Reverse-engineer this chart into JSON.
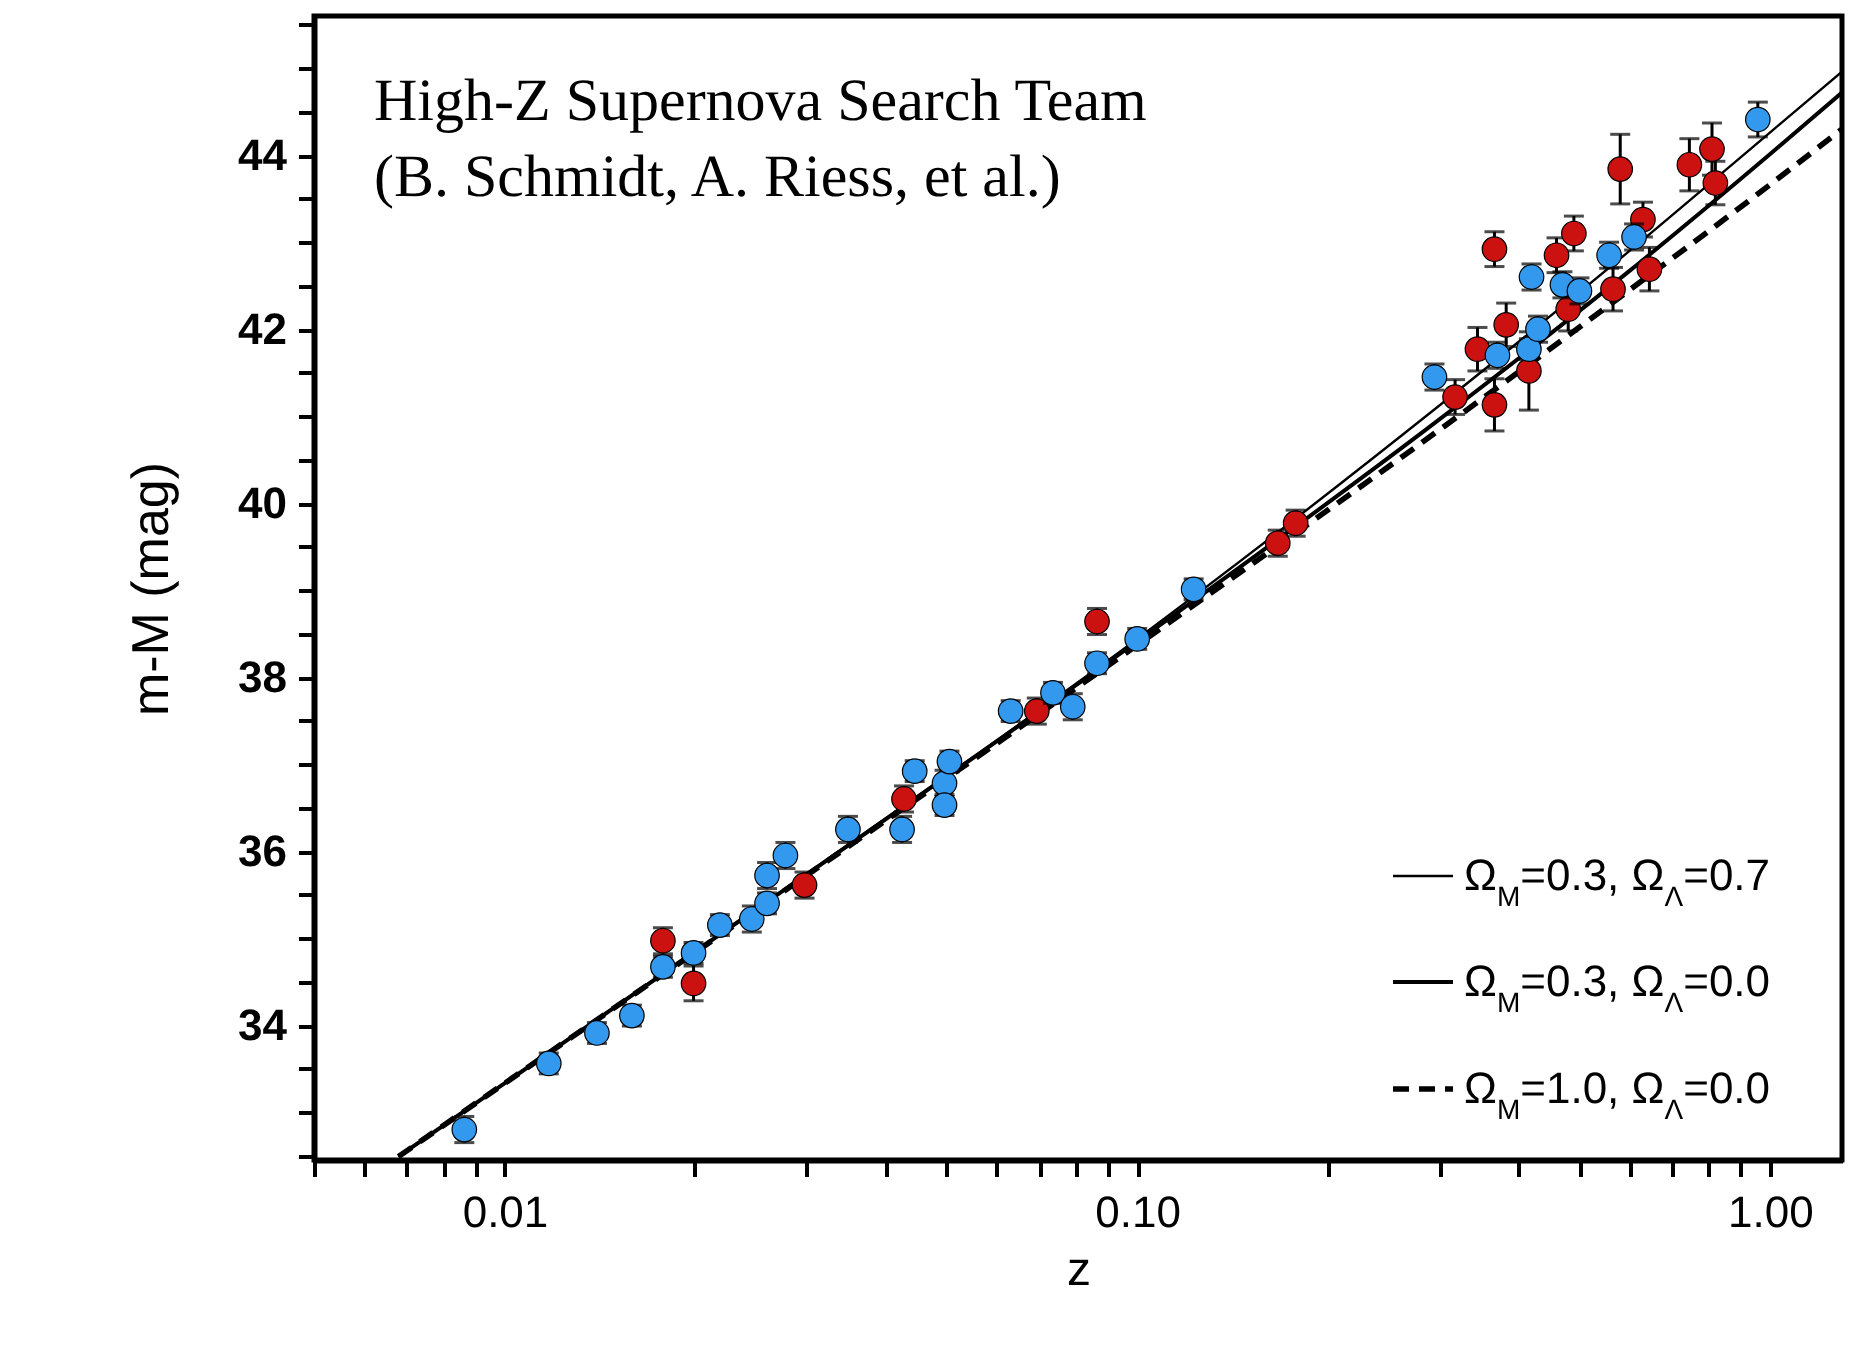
{
  "chart_data": {
    "type": "scatter",
    "xlabel": "z",
    "ylabel": "m-M (mag)",
    "log": "x",
    "grid": false,
    "legend": "bottom right",
    "marker": "circle",
    "annotations": [
      "High-Z Supernova Search Team",
      "(B. Schmidt, A. Riess, et al.)"
    ],
    "xlim": [
      0.005,
      1.3
    ],
    "ylim": [
      32.45,
      45.6
    ],
    "xticks": [
      {
        "value": 0.005,
        "label": null
      },
      {
        "value": 0.006,
        "label": null
      },
      {
        "value": 0.007,
        "label": null
      },
      {
        "value": 0.008,
        "label": null
      },
      {
        "value": 0.009,
        "label": null
      },
      {
        "value": 0.01,
        "label": "0.01"
      },
      {
        "value": 0.02,
        "label": null
      },
      {
        "value": 0.03,
        "label": null
      },
      {
        "value": 0.04,
        "label": null
      },
      {
        "value": 0.05,
        "label": null
      },
      {
        "value": 0.06,
        "label": null
      },
      {
        "value": 0.07,
        "label": null
      },
      {
        "value": 0.08,
        "label": null
      },
      {
        "value": 0.09,
        "label": null
      },
      {
        "value": 0.1,
        "label": "0.10"
      },
      {
        "value": 0.2,
        "label": null
      },
      {
        "value": 0.3,
        "label": null
      },
      {
        "value": 0.4,
        "label": null
      },
      {
        "value": 0.5,
        "label": null
      },
      {
        "value": 0.6,
        "label": null
      },
      {
        "value": 0.7,
        "label": null
      },
      {
        "value": 0.8,
        "label": null
      },
      {
        "value": 0.9,
        "label": null
      },
      {
        "value": 1,
        "label": "1.00"
      }
    ],
    "yticks": [
      {
        "value": 32.5,
        "label": null
      },
      {
        "value": 33,
        "label": null
      },
      {
        "value": 33.5,
        "label": null
      },
      34,
      {
        "value": 34.5,
        "label": null
      },
      {
        "value": 35,
        "label": null
      },
      {
        "value": 35.5,
        "label": null
      },
      36,
      {
        "value": 36.5,
        "label": null
      },
      {
        "value": 37,
        "label": null
      },
      {
        "value": 37.5,
        "label": null
      },
      38,
      {
        "value": 38.5,
        "label": null
      },
      {
        "value": 39,
        "label": null
      },
      {
        "value": 39.5,
        "label": null
      },
      40,
      {
        "value": 40.5,
        "label": null
      },
      {
        "value": 41,
        "label": null
      },
      {
        "value": 41.5,
        "label": null
      },
      42,
      {
        "value": 42.5,
        "label": null
      },
      {
        "value": 43,
        "label": null
      },
      {
        "value": 43.5,
        "label": null
      },
      44,
      {
        "value": 44.5,
        "label": null
      },
      {
        "value": 45,
        "label": null
      },
      {
        "value": 45.5,
        "label": null
      }
    ],
    "series": [
      {
        "name": "Ω$_{M}$=0.3, Ω$_{Λ}$=0.7",
        "type": "line",
        "line_style": "solid",
        "marker": "none",
        "color": "#000000",
        "x": [
          0.0068,
          0.01,
          0.03,
          0.1,
          0.3,
          0.6,
          1.0,
          1.3
        ],
        "values": [
          32.49,
          33.33,
          35.74,
          38.44,
          41.12,
          42.9,
          44.26,
          44.96
        ]
      },
      {
        "name": "Ω$_{M}$=0.3, Ω$_{Λ}$=0.0",
        "type": "line",
        "line_style": "solid",
        "marker": "none",
        "color": "#000000",
        "x": [
          0.0068,
          0.01,
          0.03,
          0.1,
          0.3,
          0.6,
          1.0,
          1.3
        ],
        "values": [
          32.49,
          33.33,
          35.73,
          38.41,
          40.96,
          42.67,
          44.01,
          44.72
        ]
      },
      {
        "name": "Ω$_{M}$=1.0, Ω$_{Λ}$=0.0",
        "type": "line",
        "line_style": "dashed",
        "marker": "none",
        "color": "#000000",
        "x": [
          0.0068,
          0.01,
          0.03,
          0.1,
          0.3,
          0.6,
          1.0,
          1.3
        ],
        "values": [
          32.49,
          33.33,
          35.72,
          38.37,
          40.84,
          42.45,
          43.66,
          44.3
        ]
      },
      {
        "type": "scatter",
        "color": "#cc1111",
        "x": [
          0.0178,
          0.0199,
          0.0298,
          0.0428,
          0.0694,
          0.0864,
          0.1668,
          0.178,
          0.318,
          0.345,
          0.367,
          0.367,
          0.383,
          0.416,
          0.46,
          0.48,
          0.49,
          0.565,
          0.58,
          0.63,
          0.645,
          0.746,
          0.81,
          0.82
        ],
        "values": [
          34.97,
          34.48,
          35.61,
          36.6,
          37.61,
          38.64,
          39.54,
          39.77,
          41.22,
          41.77,
          41.13,
          42.92,
          42.05,
          41.52,
          42.85,
          42.23,
          43.1,
          42.46,
          43.84,
          43.26,
          42.69,
          43.89,
          44.07,
          43.68
        ],
        "errors": [
          0.15,
          0.2,
          0.15,
          0.15,
          0.15,
          0.15,
          0.15,
          0.15,
          0.2,
          0.25,
          0.3,
          0.2,
          0.25,
          0.45,
          0.2,
          0.25,
          0.2,
          0.25,
          0.4,
          0.2,
          0.25,
          0.3,
          0.3,
          0.25
        ]
      },
      {
        "type": "scatter",
        "color": "#3399ee",
        "x": [
          0.00864,
          0.01175,
          0.014,
          0.0159,
          0.0178,
          0.0199,
          0.0219,
          0.0246,
          0.026,
          0.026,
          0.0278,
          0.0349,
          0.0425,
          0.0445,
          0.0496,
          0.0496,
          0.0505,
          0.0631,
          0.0736,
          0.0791,
          0.0864,
          0.1,
          0.1228,
          0.295,
          0.371,
          0.416,
          0.43,
          0.42,
          0.47,
          0.5,
          0.557,
          0.61,
          0.957
        ],
        "values": [
          32.8,
          33.56,
          33.91,
          34.11,
          34.67,
          34.83,
          35.15,
          35.22,
          35.4,
          35.72,
          35.95,
          36.25,
          36.25,
          36.92,
          36.78,
          36.53,
          37.03,
          37.61,
          37.82,
          37.66,
          38.16,
          38.44,
          39.01,
          41.45,
          41.7,
          41.77,
          42.0,
          42.6,
          42.51,
          42.44,
          42.85,
          43.06,
          44.41
        ],
        "errors": [
          0.15,
          0.12,
          0.12,
          0.12,
          0.12,
          0.12,
          0.12,
          0.15,
          0.12,
          0.15,
          0.15,
          0.15,
          0.15,
          0.12,
          0.15,
          0.12,
          0.12,
          0.12,
          0.12,
          0.15,
          0.12,
          0.12,
          0.12,
          0.15,
          0.15,
          0.12,
          0.15,
          0.15,
          0.15,
          0.15,
          0.15,
          0.15,
          0.2
        ]
      }
    ]
  }
}
